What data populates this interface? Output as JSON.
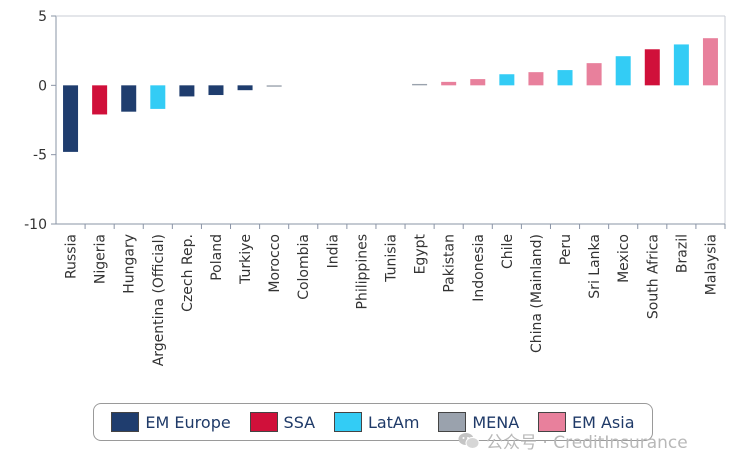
{
  "chart_data": {
    "type": "bar",
    "categories": [
      "Russia",
      "Nigeria",
      "Hungary",
      "Argentina (Official)",
      "Czech Rep.",
      "Poland",
      "Turkiye",
      "Morocco",
      "Colombia",
      "India",
      "Philippines",
      "Tunisia",
      "Egypt",
      "Pakistan",
      "Indonesia",
      "Chile",
      "China (Mainland)",
      "Peru",
      "Sri Lanka",
      "Mexico",
      "South Africa",
      "Brazil",
      "Malaysia"
    ],
    "values": [
      -4.8,
      -2.1,
      -1.9,
      -1.7,
      -0.8,
      -0.7,
      -0.35,
      -0.1,
      0,
      0,
      0,
      0,
      0.1,
      0.25,
      0.45,
      0.8,
      0.95,
      1.1,
      1.6,
      2.1,
      2.6,
      2.95,
      3.4
    ],
    "groups": [
      "EM Europe",
      "SSA",
      "EM Europe",
      "LatAm",
      "EM Europe",
      "EM Europe",
      "EM Europe",
      "MENA",
      "LatAm",
      "EM Asia",
      "EM Asia",
      "MENA",
      "MENA",
      "EM Asia",
      "EM Asia",
      "LatAm",
      "EM Asia",
      "LatAm",
      "EM Asia",
      "LatAm",
      "SSA",
      "LatAm",
      "EM Asia"
    ],
    "ylim": [
      -10,
      5
    ],
    "yticks": [
      5,
      0,
      -5,
      -10
    ],
    "grid": false,
    "legend_position": "bottom",
    "legend": [
      {
        "name": "EM Europe",
        "color": "#1f3d6e"
      },
      {
        "name": "SSA",
        "color": "#d0103a"
      },
      {
        "name": "LatAm",
        "color": "#33ccf5"
      },
      {
        "name": "MENA",
        "color": "#9aa2ad"
      },
      {
        "name": "EM Asia",
        "color": "#e8809c"
      }
    ]
  },
  "watermark": {
    "text": "公众号 · CreditInsurance",
    "icon": "wechat-icon"
  }
}
